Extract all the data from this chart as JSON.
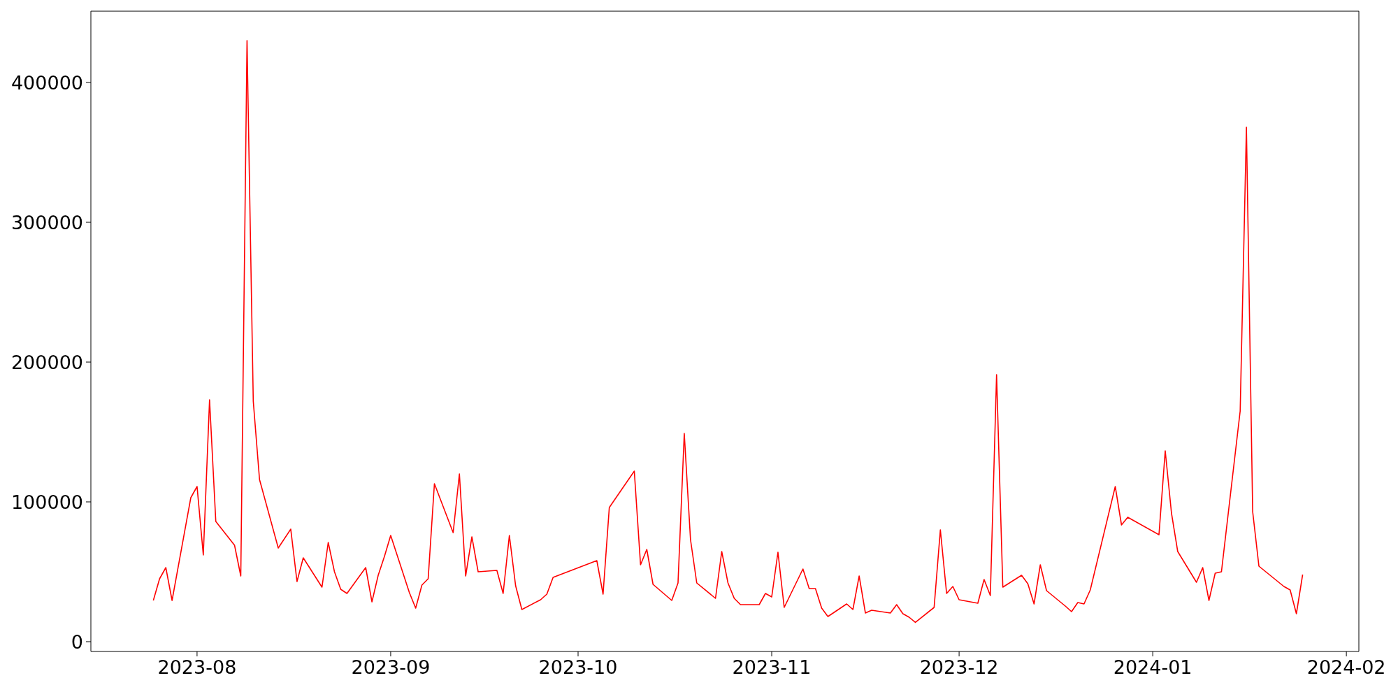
{
  "chart_data": {
    "type": "line",
    "x": [
      "2023-07-25",
      "2023-07-26",
      "2023-07-27",
      "2023-07-28",
      "2023-07-31",
      "2023-08-01",
      "2023-08-02",
      "2023-08-03",
      "2023-08-04",
      "2023-08-07",
      "2023-08-08",
      "2023-08-09",
      "2023-08-10",
      "2023-08-11",
      "2023-08-14",
      "2023-08-16",
      "2023-08-17",
      "2023-08-18",
      "2023-08-21",
      "2023-08-22",
      "2023-08-23",
      "2023-08-24",
      "2023-08-25",
      "2023-08-28",
      "2023-08-29",
      "2023-08-30",
      "2023-08-31",
      "2023-09-01",
      "2023-09-04",
      "2023-09-05",
      "2023-09-06",
      "2023-09-07",
      "2023-09-08",
      "2023-09-11",
      "2023-09-12",
      "2023-09-13",
      "2023-09-14",
      "2023-09-15",
      "2023-09-18",
      "2023-09-19",
      "2023-09-20",
      "2023-09-21",
      "2023-09-22",
      "2023-09-25",
      "2023-09-26",
      "2023-09-27",
      "2023-10-04",
      "2023-10-05",
      "2023-10-06",
      "2023-10-10",
      "2023-10-11",
      "2023-10-12",
      "2023-10-13",
      "2023-10-16",
      "2023-10-17",
      "2023-10-18",
      "2023-10-19",
      "2023-10-20",
      "2023-10-23",
      "2023-10-24",
      "2023-10-25",
      "2023-10-26",
      "2023-10-27",
      "2023-10-30",
      "2023-10-31",
      "2023-11-01",
      "2023-11-02",
      "2023-11-03",
      "2023-11-06",
      "2023-11-07",
      "2023-11-08",
      "2023-11-09",
      "2023-11-10",
      "2023-11-13",
      "2023-11-14",
      "2023-11-15",
      "2023-11-16",
      "2023-11-17",
      "2023-11-20",
      "2023-11-21",
      "2023-11-22",
      "2023-11-23",
      "2023-11-24",
      "2023-11-27",
      "2023-11-28",
      "2023-11-29",
      "2023-11-30",
      "2023-12-01",
      "2023-12-04",
      "2023-12-05",
      "2023-12-06",
      "2023-12-07",
      "2023-12-08",
      "2023-12-11",
      "2023-12-12",
      "2023-12-13",
      "2023-12-14",
      "2023-12-15",
      "2023-12-18",
      "2023-12-19",
      "2023-12-20",
      "2023-12-21",
      "2023-12-22",
      "2023-12-26",
      "2023-12-27",
      "2023-12-28",
      "2024-01-02",
      "2024-01-03",
      "2024-01-04",
      "2024-01-05",
      "2024-01-08",
      "2024-01-09",
      "2024-01-10",
      "2024-01-11",
      "2024-01-12",
      "2024-01-15",
      "2024-01-16",
      "2024-01-17",
      "2024-01-18",
      "2024-01-22",
      "2024-01-23",
      "2024-01-24",
      "2024-01-25"
    ],
    "series": [
      {
        "color": "#ff0000",
        "values": [
          29500,
          45000,
          53000,
          29500,
          103000,
          111000,
          62000,
          173000,
          86000,
          69000,
          47000,
          430000,
          172000,
          116000,
          67000,
          80500,
          43000,
          60000,
          39000,
          71000,
          50000,
          37500,
          34500,
          53000,
          28500,
          47500,
          61000,
          76000,
          35000,
          24000,
          40500,
          45000,
          113000,
          78000,
          120000,
          47000,
          75000,
          50000,
          51000,
          34500,
          76000,
          40000,
          23000,
          30000,
          34000,
          46000,
          58000,
          34000,
          96000,
          122000,
          55000,
          66000,
          41000,
          29500,
          42000,
          149000,
          73000,
          42000,
          31000,
          64500,
          42000,
          31000,
          26500,
          26500,
          34500,
          32000,
          64000,
          24500,
          52000,
          38000,
          38000,
          24000,
          18000,
          27000,
          23000,
          47000,
          20500,
          22500,
          20500,
          26500,
          20000,
          17500,
          13800,
          24500,
          80000,
          34500,
          39500,
          30000,
          27500,
          44500,
          33000,
          191000,
          39000,
          47500,
          41500,
          27000,
          55000,
          36500,
          25500,
          21500,
          28000,
          27000,
          37000,
          111000,
          83500,
          89000,
          76500,
          136500,
          92000,
          64500,
          42500,
          53000,
          29500,
          49000,
          50000,
          165000,
          368000,
          93000,
          54000,
          39500,
          37000,
          20000,
          48000
        ]
      }
    ],
    "xlim": [
      "2023-07-15",
      "2024-02-03"
    ],
    "xticks": [
      "2023-08",
      "2023-09",
      "2023-10",
      "2023-11",
      "2023-12",
      "2024-01",
      "2024-02"
    ],
    "ylim": [
      -7000,
      451000
    ],
    "yticks": [
      0,
      100000,
      200000,
      300000,
      400000
    ],
    "grid": false,
    "legend": false,
    "marker": "none",
    "line_style": "solid"
  }
}
